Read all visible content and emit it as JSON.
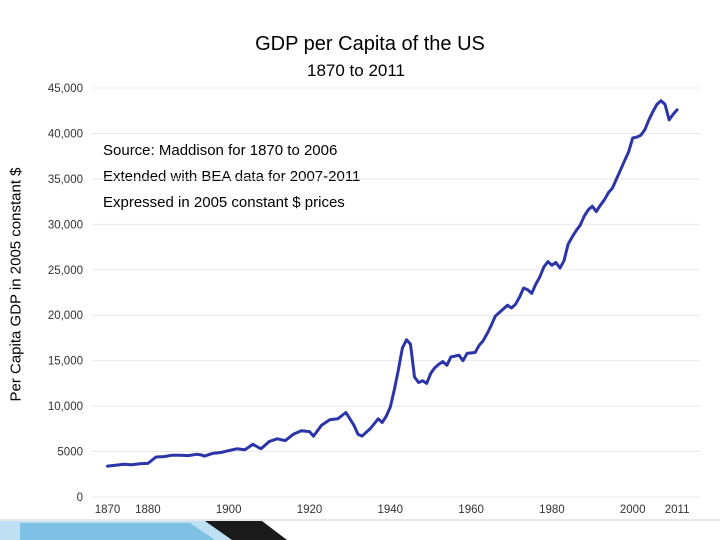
{
  "chart_data": {
    "type": "line",
    "title": "GDP per Capita of the US",
    "subtitle": "1870 to 2011",
    "xlabel": "",
    "ylabel": "Per Capita GDP in 2005 constant $",
    "xlim": [
      1870,
      2011
    ],
    "ylim": [
      0,
      45000
    ],
    "yticks": [
      {
        "value": 0,
        "label": "0"
      },
      {
        "value": 5000,
        "label": "5000"
      },
      {
        "value": 10000,
        "label": "10,000"
      },
      {
        "value": 15000,
        "label": "15,000"
      },
      {
        "value": 20000,
        "label": "20,000"
      },
      {
        "value": 25000,
        "label": "25,000"
      },
      {
        "value": 30000,
        "label": "30,000"
      },
      {
        "value": 35000,
        "label": "35,000"
      },
      {
        "value": 40000,
        "label": "40,000"
      },
      {
        "value": 45000,
        "label": "45,000"
      }
    ],
    "xticks": [
      {
        "value": 1870,
        "label": "1870"
      },
      {
        "value": 1880,
        "label": "1880"
      },
      {
        "value": 1900,
        "label": "1900"
      },
      {
        "value": 1920,
        "label": "1920"
      },
      {
        "value": 1940,
        "label": "1940"
      },
      {
        "value": 1960,
        "label": "1960"
      },
      {
        "value": 1980,
        "label": "1980"
      },
      {
        "value": 2000,
        "label": "2000"
      },
      {
        "value": 2011,
        "label": "2011"
      }
    ],
    "annotations": [
      "Source:  Maddison for 1870 to 2006",
      "Extended with BEA data for 2007-2011",
      "Expressed in 2005 constant $ prices"
    ],
    "series": [
      {
        "name": "US GDP per capita",
        "color": "#2b35a8",
        "points": [
          [
            1870,
            3400
          ],
          [
            1872,
            3500
          ],
          [
            1874,
            3600
          ],
          [
            1876,
            3550
          ],
          [
            1878,
            3650
          ],
          [
            1880,
            3700
          ],
          [
            1882,
            4400
          ],
          [
            1884,
            4450
          ],
          [
            1886,
            4600
          ],
          [
            1888,
            4600
          ],
          [
            1890,
            4550
          ],
          [
            1892,
            4700
          ],
          [
            1893,
            4650
          ],
          [
            1894,
            4500
          ],
          [
            1896,
            4800
          ],
          [
            1898,
            4900
          ],
          [
            1899,
            5000
          ],
          [
            1900,
            5100
          ],
          [
            1902,
            5300
          ],
          [
            1904,
            5200
          ],
          [
            1906,
            5800
          ],
          [
            1908,
            5300
          ],
          [
            1910,
            6100
          ],
          [
            1912,
            6400
          ],
          [
            1914,
            6200
          ],
          [
            1916,
            6900
          ],
          [
            1918,
            7300
          ],
          [
            1920,
            7200
          ],
          [
            1921,
            6700
          ],
          [
            1923,
            7900
          ],
          [
            1925,
            8500
          ],
          [
            1927,
            8600
          ],
          [
            1929,
            9300
          ],
          [
            1930,
            8600
          ],
          [
            1931,
            7900
          ],
          [
            1932,
            6900
          ],
          [
            1933,
            6700
          ],
          [
            1935,
            7500
          ],
          [
            1937,
            8600
          ],
          [
            1938,
            8200
          ],
          [
            1939,
            8900
          ],
          [
            1940,
            9900
          ],
          [
            1941,
            11800
          ],
          [
            1942,
            14000
          ],
          [
            1943,
            16400
          ],
          [
            1944,
            17300
          ],
          [
            1945,
            16800
          ],
          [
            1946,
            13200
          ],
          [
            1947,
            12600
          ],
          [
            1948,
            12800
          ],
          [
            1949,
            12500
          ],
          [
            1950,
            13600
          ],
          [
            1951,
            14200
          ],
          [
            1952,
            14600
          ],
          [
            1953,
            14900
          ],
          [
            1954,
            14500
          ],
          [
            1955,
            15400
          ],
          [
            1957,
            15600
          ],
          [
            1958,
            15000
          ],
          [
            1959,
            15800
          ],
          [
            1961,
            15900
          ],
          [
            1962,
            16700
          ],
          [
            1963,
            17200
          ],
          [
            1964,
            18000
          ],
          [
            1965,
            18900
          ],
          [
            1966,
            19900
          ],
          [
            1968,
            20700
          ],
          [
            1969,
            21100
          ],
          [
            1970,
            20800
          ],
          [
            1971,
            21200
          ],
          [
            1972,
            22000
          ],
          [
            1973,
            23000
          ],
          [
            1974,
            22800
          ],
          [
            1975,
            22400
          ],
          [
            1976,
            23400
          ],
          [
            1977,
            24200
          ],
          [
            1978,
            25300
          ],
          [
            1979,
            25900
          ],
          [
            1980,
            25500
          ],
          [
            1981,
            25800
          ],
          [
            1982,
            25200
          ],
          [
            1983,
            26000
          ],
          [
            1984,
            27800
          ],
          [
            1985,
            28600
          ],
          [
            1986,
            29300
          ],
          [
            1987,
            29900
          ],
          [
            1988,
            30900
          ],
          [
            1989,
            31600
          ],
          [
            1990,
            32000
          ],
          [
            1991,
            31400
          ],
          [
            1992,
            32100
          ],
          [
            1993,
            32700
          ],
          [
            1994,
            33500
          ],
          [
            1995,
            34000
          ],
          [
            1996,
            35000
          ],
          [
            1997,
            36000
          ],
          [
            1998,
            37000
          ],
          [
            1999,
            38000
          ],
          [
            2000,
            39500
          ],
          [
            2001,
            39600
          ],
          [
            2002,
            39800
          ],
          [
            2003,
            40400
          ],
          [
            2004,
            41500
          ],
          [
            2005,
            42400
          ],
          [
            2006,
            43200
          ],
          [
            2007,
            43600
          ],
          [
            2008,
            43200
          ],
          [
            2009,
            41500
          ],
          [
            2010,
            42100
          ],
          [
            2011,
            42600
          ]
        ]
      }
    ]
  }
}
